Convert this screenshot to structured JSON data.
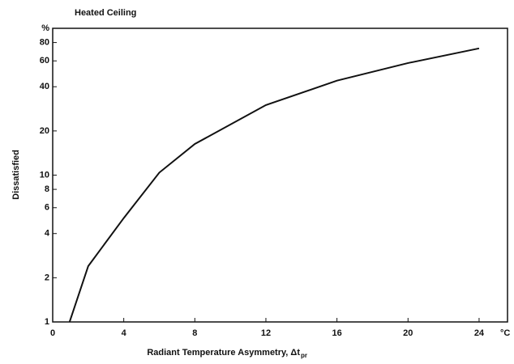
{
  "chart_data": {
    "type": "line",
    "title": "Heated Ceiling",
    "y_label": "Dissatisfied",
    "x_label": "Radiant Temperature Asymmetry, Δt",
    "x_label_subscript": "pr",
    "x_unit": "°C",
    "x": [
      0.95,
      2,
      4,
      6,
      8,
      12,
      16,
      20,
      24
    ],
    "series": [
      {
        "name": "Heated Ceiling",
        "color": "#111111",
        "values": [
          1,
          2.4,
          5.1,
          10.4,
          16.3,
          30,
          44,
          58,
          73
        ]
      }
    ],
    "xlim": [
      0,
      25.6
    ],
    "xticks": [
      0,
      4,
      8,
      12,
      16,
      20,
      24
    ],
    "ylim": [
      1,
      100
    ],
    "log_y": true,
    "yticks": [
      1,
      2,
      4,
      6,
      8,
      10,
      20,
      40,
      60,
      80,
      {
        "value": 100,
        "label": "%"
      }
    ],
    "grid": false
  }
}
